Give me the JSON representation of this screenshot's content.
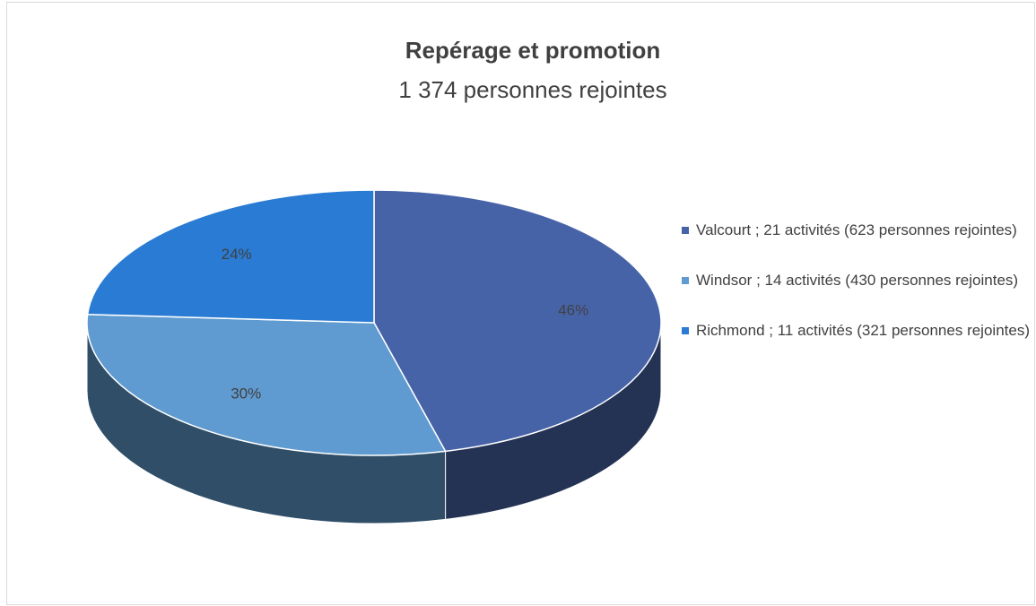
{
  "chart_data": {
    "type": "pie",
    "title": "Repérage et promotion",
    "subtitle": "1 374 personnes rejointes",
    "categories": [
      "Valcourt ; 21 activités (623 personnes rejointes)",
      "Windsor ; 14 activités (430 personnes rejointes)",
      "Richmond ; 11 activités (321 personnes rejointes)"
    ],
    "values": [
      46,
      30,
      24
    ],
    "value_labels": [
      "46%",
      "30%",
      "24%"
    ],
    "colors": [
      "#4763a8",
      "#5f9bd0",
      "#2a7bd3"
    ],
    "legend": "right"
  }
}
